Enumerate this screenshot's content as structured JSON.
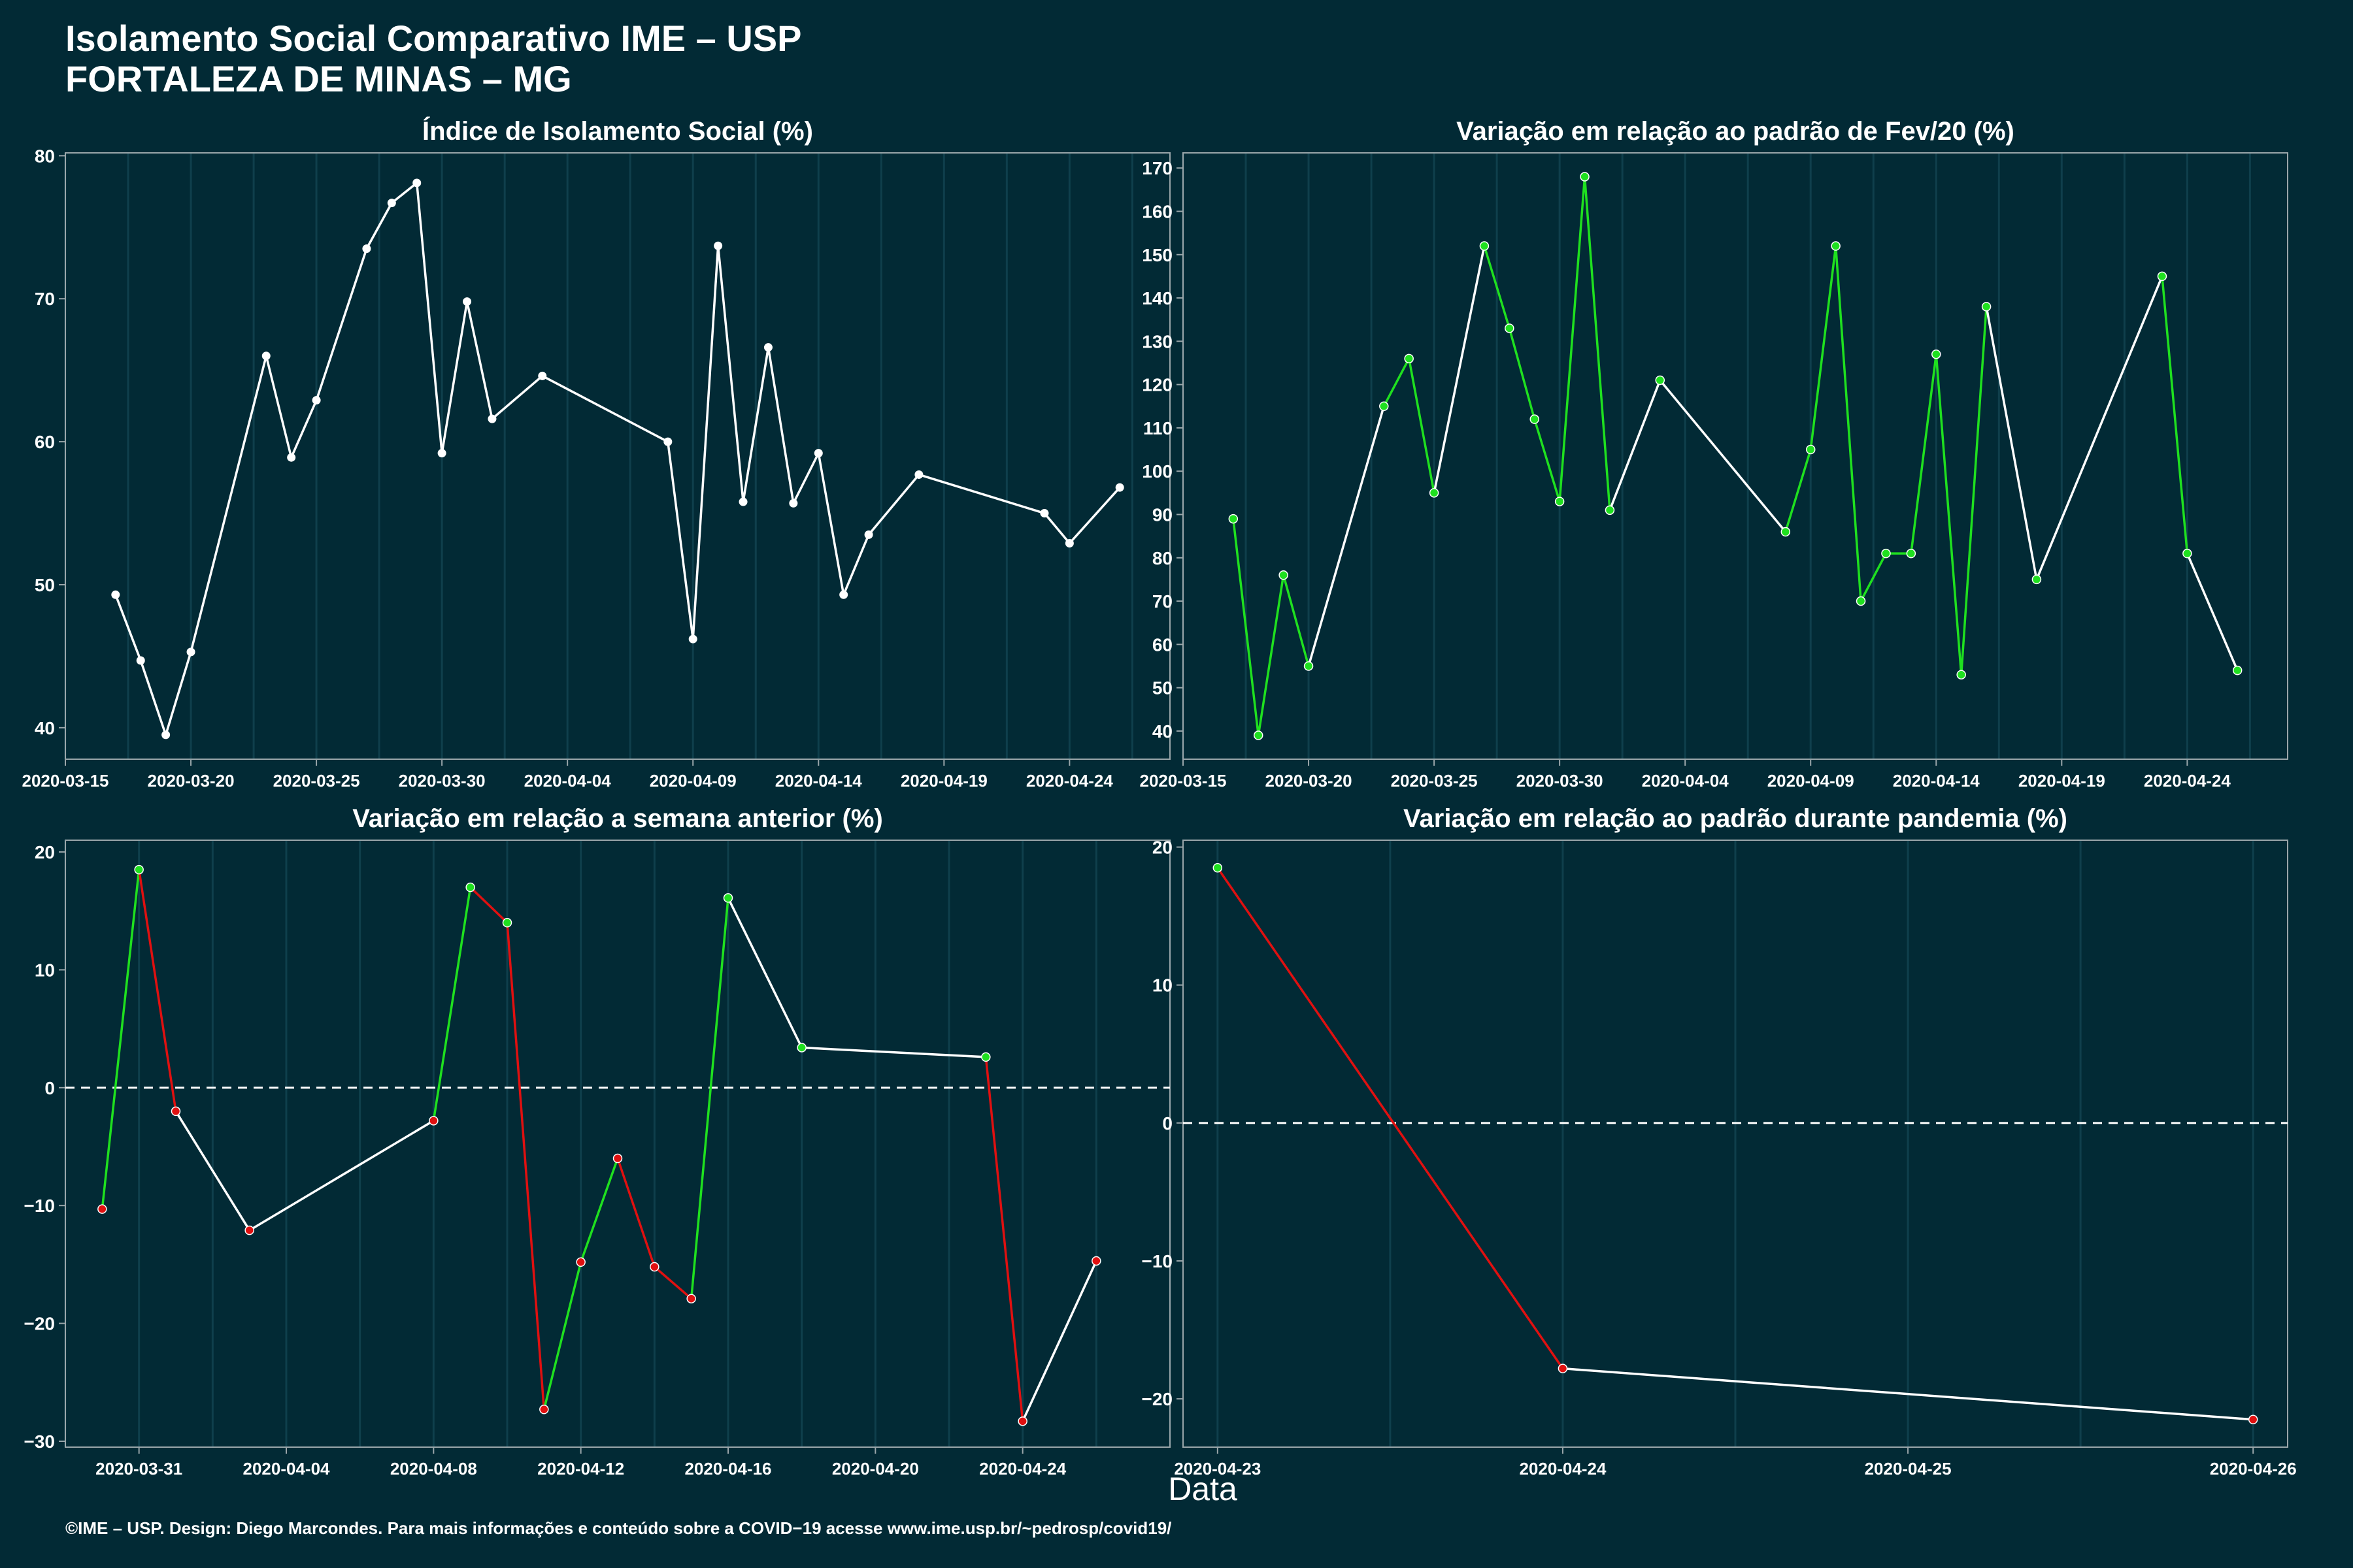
{
  "header": {
    "title_line1": "Isolamento Social Comparativo IME – USP",
    "title_line2": "FORTALEZA DE MINAS – MG"
  },
  "x_axis_label": "Data",
  "footer": "©IME – USP. Design: Diego Marcondes. Para mais informações e conteúdo sobre a COVID−19 acesse www.ime.usp.br/~pedrosp/covid19/",
  "colors": {
    "background": "#022a35",
    "line": "#ffffff",
    "positive": "#1fe01f",
    "negative": "#e01010",
    "panel_border": "#9aa6aa",
    "grid": "#0f3f4c"
  },
  "chart_data": [
    {
      "type": "line",
      "title": "Índice de Isolamento Social (%)",
      "xlim": [
        "2020-03-15",
        "2020-04-28"
      ],
      "ylim": [
        37.8,
        80.2
      ],
      "x_ticks": [
        "2020-03-15",
        "2020-03-20",
        "2020-03-25",
        "2020-03-30",
        "2020-04-04",
        "2020-04-09",
        "2020-04-14",
        "2020-04-19",
        "2020-04-24"
      ],
      "y_ticks": [
        "40",
        "50",
        "60",
        "70",
        "80"
      ],
      "y_tick_values": [
        40,
        50,
        60,
        70,
        80
      ],
      "reference_line": null,
      "point_color": "white",
      "series": [
        {
          "x": [
            "2020-03-17",
            "2020-03-18",
            "2020-03-19",
            "2020-03-20",
            "2020-03-23",
            "2020-03-24",
            "2020-03-25",
            "2020-03-27",
            "2020-03-28",
            "2020-03-29",
            "2020-03-30",
            "2020-03-31",
            "2020-04-01",
            "2020-04-03",
            "2020-04-08",
            "2020-04-09",
            "2020-04-10",
            "2020-04-11",
            "2020-04-12",
            "2020-04-13",
            "2020-04-14",
            "2020-04-15",
            "2020-04-16",
            "2020-04-18",
            "2020-04-23",
            "2020-04-24",
            "2020-04-26"
          ],
          "y": [
            49.3,
            44.7,
            39.5,
            45.3,
            66.0,
            58.9,
            62.9,
            73.5,
            76.7,
            78.1,
            59.2,
            69.8,
            61.6,
            64.6,
            60.0,
            46.2,
            73.7,
            55.8,
            66.6,
            55.7,
            59.2,
            49.3,
            53.5,
            57.7,
            55.0,
            52.9,
            56.8
          ]
        }
      ]
    },
    {
      "type": "line",
      "title": "Variação em relação ao padrão de Fev/20 (%)",
      "xlim": [
        "2020-03-15",
        "2020-04-28"
      ],
      "ylim": [
        33.5,
        173.5
      ],
      "x_ticks": [
        "2020-03-15",
        "2020-03-20",
        "2020-03-25",
        "2020-03-30",
        "2020-04-04",
        "2020-04-09",
        "2020-04-14",
        "2020-04-19",
        "2020-04-24"
      ],
      "y_ticks": [
        "40",
        "50",
        "60",
        "70",
        "80",
        "90",
        "100",
        "110",
        "120",
        "130",
        "140",
        "150",
        "160",
        "170"
      ],
      "y_tick_values": [
        40,
        50,
        60,
        70,
        80,
        90,
        100,
        110,
        120,
        130,
        140,
        150,
        160,
        170
      ],
      "reference_line": null,
      "point_color": "green",
      "series": [
        {
          "x": [
            "2020-03-17",
            "2020-03-18",
            "2020-03-19",
            "2020-03-20",
            "2020-03-23",
            "2020-03-24",
            "2020-03-25",
            "2020-03-27",
            "2020-03-28",
            "2020-03-29",
            "2020-03-30",
            "2020-03-31",
            "2020-04-01",
            "2020-04-03",
            "2020-04-08",
            "2020-04-09",
            "2020-04-10",
            "2020-04-11",
            "2020-04-12",
            "2020-04-13",
            "2020-04-14",
            "2020-04-15",
            "2020-04-16",
            "2020-04-18",
            "2020-04-23",
            "2020-04-24",
            "2020-04-26"
          ],
          "y": [
            89,
            39,
            76,
            55,
            115,
            126,
            95,
            152,
            133,
            112,
            93,
            168,
            91,
            121,
            86,
            105,
            152,
            70,
            81,
            81,
            127,
            53,
            138,
            75,
            145,
            81,
            54
          ]
        }
      ]
    },
    {
      "type": "line",
      "title": "Variação em relação a semana anterior (%)",
      "xlim": [
        "2020-03-29",
        "2020-04-28"
      ],
      "ylim": [
        -30.5,
        21.0
      ],
      "x_ticks": [
        "2020-03-31",
        "2020-04-04",
        "2020-04-08",
        "2020-04-12",
        "2020-04-16",
        "2020-04-20",
        "2020-04-24"
      ],
      "y_ticks": [
        "−30",
        "−20",
        "−10",
        "0",
        "10",
        "20"
      ],
      "y_tick_values": [
        -30,
        -20,
        -10,
        0,
        10,
        20
      ],
      "reference_line": 0,
      "point_color": "by-sign",
      "series": [
        {
          "x": [
            "2020-03-30",
            "2020-03-31",
            "2020-04-01",
            "2020-04-03",
            "2020-04-08",
            "2020-04-09",
            "2020-04-10",
            "2020-04-11",
            "2020-04-12",
            "2020-04-13",
            "2020-04-14",
            "2020-04-15",
            "2020-04-16",
            "2020-04-18",
            "2020-04-23",
            "2020-04-24",
            "2020-04-26"
          ],
          "y": [
            -10.3,
            18.5,
            -2.0,
            -12.1,
            -2.8,
            17.0,
            14.0,
            -27.3,
            -14.8,
            -6.0,
            -15.2,
            -17.9,
            16.1,
            3.4,
            2.6,
            -28.3,
            -14.7
          ]
        }
      ]
    },
    {
      "type": "line",
      "title": "Variação em relação ao padrão durante pandemia (%)",
      "xlim": [
        "2020-04-22.9",
        "2020-04-26.05"
      ],
      "ylim": [
        -23.5,
        20.5
      ],
      "x_ticks": [
        "2020-04-23",
        "2020-04-24",
        "2020-04-25",
        "2020-04-26"
      ],
      "y_ticks": [
        "−20",
        "−10",
        "0",
        "10",
        "20"
      ],
      "y_tick_values": [
        -20,
        -10,
        0,
        10,
        20
      ],
      "reference_line": 0,
      "point_color": "by-sign",
      "series": [
        {
          "x": [
            "2020-04-23",
            "2020-04-24",
            "2020-04-26"
          ],
          "y": [
            18.5,
            -17.8,
            -21.5
          ]
        }
      ]
    }
  ]
}
